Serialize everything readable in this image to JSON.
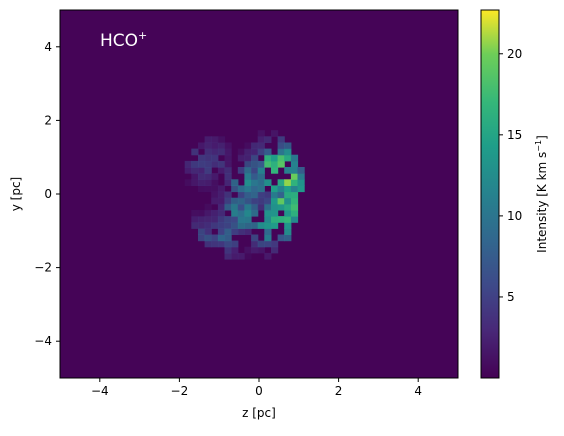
{
  "chart_data": {
    "type": "heatmap",
    "title": "",
    "annotation": {
      "base": "HCO",
      "superscript": "+",
      "position": "top-left",
      "color": "#ffffff"
    },
    "xlabel": "z [pc]",
    "ylabel": "y [pc]",
    "xlim": [
      -5,
      5
    ],
    "ylim": [
      -5,
      5
    ],
    "xticks": [
      -4,
      -2,
      0,
      2,
      4
    ],
    "yticks": [
      -4,
      -2,
      0,
      2,
      4
    ],
    "colorbar": {
      "label_prefix": "Intensity [K km s",
      "label_superscript": "−1",
      "label_suffix": "]",
      "min": 0,
      "max": 22.7,
      "ticks": [
        5,
        10,
        15,
        20
      ],
      "colormap": "viridis"
    },
    "background_value": 0.3,
    "grid": false,
    "emission_region": {
      "description_free": true,
      "regions": [
        {
          "z": 0.6,
          "y": 0.3,
          "intensity": 20
        },
        {
          "z": 0.7,
          "y": -0.4,
          "intensity": 21
        },
        {
          "z": 0.4,
          "y": 0.7,
          "intensity": 19
        },
        {
          "z": 0.3,
          "y": -0.9,
          "intensity": 17
        },
        {
          "z": -0.3,
          "y": 0.2,
          "intensity": 13
        },
        {
          "z": -0.5,
          "y": -0.6,
          "intensity": 12
        },
        {
          "z": -1.0,
          "y": -1.2,
          "intensity": 10
        },
        {
          "z": -1.4,
          "y": 0.8,
          "intensity": 7
        },
        {
          "z": -1.6,
          "y": -1.3,
          "intensity": 7
        },
        {
          "z": 0.9,
          "y": 0.1,
          "intensity": 15
        }
      ]
    }
  },
  "colors": {
    "viridis_low": "#440154",
    "viridis_high": "#fde725"
  }
}
